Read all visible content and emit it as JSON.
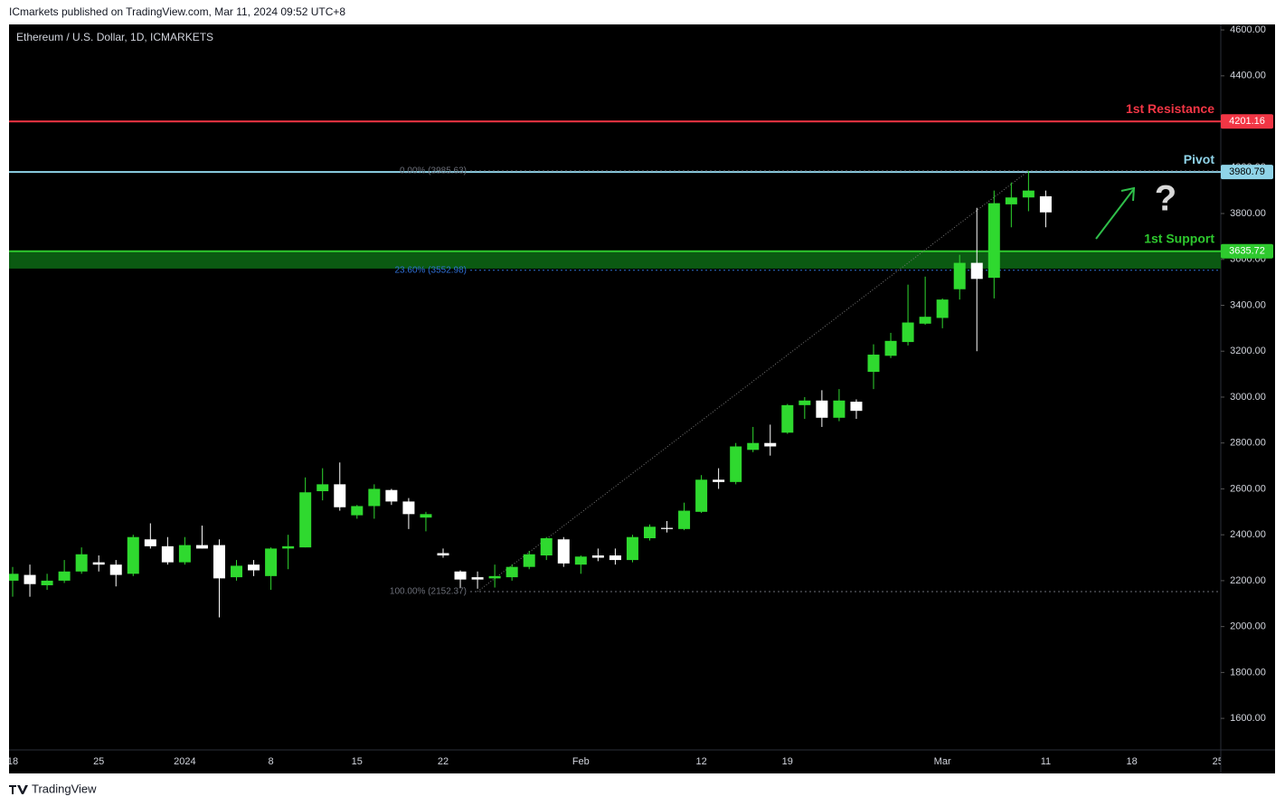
{
  "header": "ICmarkets published on TradingView.com, Mar 11, 2024 09:52 UTC+8",
  "footer": "TradingView",
  "chart_data": {
    "type": "candlestick",
    "title": "Ethereum / U.S. Dollar, 1D, ICMARKETS",
    "categories": [
      "18",
      null,
      null,
      null,
      null,
      "25",
      null,
      null,
      null,
      null,
      "2024",
      null,
      null,
      null,
      null,
      "8",
      null,
      null,
      null,
      null,
      "15",
      null,
      null,
      null,
      null,
      "22",
      null,
      null,
      null,
      null,
      null,
      null,
      null,
      "Feb",
      null,
      null,
      null,
      null,
      null,
      null,
      "12",
      null,
      null,
      null,
      null,
      "19",
      null,
      null,
      null,
      null,
      null,
      null,
      null,
      null,
      "Mar",
      null,
      null,
      null,
      null,
      null,
      "11",
      null,
      null,
      null,
      null,
      "18",
      null,
      null,
      null,
      null,
      "25"
    ],
    "open": [
      2200,
      2225,
      2180,
      2200,
      2240,
      2280,
      2270,
      2230,
      2380,
      2350,
      2280,
      2355,
      2355,
      2215,
      2270,
      2220,
      2340,
      2345,
      2590,
      2620,
      2485,
      2525,
      2595,
      2545,
      2475,
      2320,
      2240,
      2215,
      2210,
      2215,
      2260,
      2310,
      2380,
      2270,
      2310,
      2310,
      2290,
      2385,
      2430,
      2425,
      2500,
      2640,
      2630,
      2770,
      2800,
      2845,
      2965,
      2985,
      2910,
      2980,
      3110,
      3180,
      3240,
      3320,
      3345,
      3470,
      3585,
      3520,
      3840,
      3870,
      3875,
      null,
      null,
      null,
      null,
      null,
      null,
      null,
      null,
      null,
      null
    ],
    "high": [
      2260,
      2270,
      2230,
      2290,
      2345,
      2310,
      2290,
      2400,
      2450,
      2390,
      2390,
      2440,
      2380,
      2290,
      2290,
      2345,
      2400,
      2650,
      2690,
      2715,
      2530,
      2620,
      2600,
      2560,
      2500,
      2340,
      2245,
      2240,
      2270,
      2270,
      2330,
      2390,
      2390,
      2310,
      2340,
      2340,
      2400,
      2445,
      2460,
      2540,
      2660,
      2690,
      2800,
      2870,
      2880,
      2970,
      3000,
      3030,
      3035,
      2990,
      3230,
      3280,
      3490,
      3525,
      3430,
      3620,
      3825,
      3900,
      3935,
      3985.63,
      3900,
      null,
      null,
      null,
      null,
      null,
      null,
      null,
      null,
      null,
      null
    ],
    "low": [
      2130,
      2130,
      2160,
      2190,
      2230,
      2240,
      2175,
      2220,
      2340,
      2270,
      2270,
      2340,
      2040,
      2200,
      2220,
      2160,
      2250,
      2345,
      2550,
      2505,
      2470,
      2470,
      2530,
      2425,
      2415,
      2300,
      2170,
      2165,
      2170,
      2200,
      2250,
      2290,
      2260,
      2230,
      2285,
      2270,
      2280,
      2375,
      2410,
      2420,
      2495,
      2600,
      2620,
      2760,
      2745,
      2840,
      2905,
      2870,
      2895,
      2905,
      3035,
      3170,
      3225,
      3315,
      3300,
      3425,
      3200,
      3430,
      3740,
      3810,
      3740,
      null,
      null,
      null,
      null,
      null,
      null,
      null,
      null,
      null,
      null
    ],
    "close": [
      2230,
      2185,
      2200,
      2240,
      2315,
      2270,
      2225,
      2390,
      2350,
      2280,
      2355,
      2340,
      2210,
      2265,
      2245,
      2340,
      2350,
      2585,
      2620,
      2520,
      2525,
      2600,
      2545,
      2490,
      2490,
      2310,
      2205,
      2205,
      2220,
      2260,
      2315,
      2385,
      2275,
      2305,
      2300,
      2290,
      2390,
      2435,
      2425,
      2505,
      2640,
      2630,
      2785,
      2800,
      2785,
      2965,
      2985,
      2910,
      2985,
      2940,
      3185,
      3245,
      3325,
      3350,
      3425,
      3585,
      3515,
      3845,
      3870,
      3900,
      3805,
      null,
      null,
      null,
      null,
      null,
      null,
      null,
      null,
      null,
      null
    ],
    "up_color": "#2fd92f",
    "down_color": "#ffffff",
    "ylim": [
      1360,
      4624
    ],
    "yticks": [
      {
        "value": 1600,
        "label": "1600.00"
      },
      {
        "value": 1800,
        "label": "1800.00"
      },
      {
        "value": 2000,
        "label": "2000.00"
      },
      {
        "value": 2200,
        "label": "2200.00"
      },
      {
        "value": 2400,
        "label": "2400.00"
      },
      {
        "value": 2600,
        "label": "2600.00"
      },
      {
        "value": 2800,
        "label": "2800.00"
      },
      {
        "value": 3000,
        "label": "3000.00"
      },
      {
        "value": 3200,
        "label": "3200.00"
      },
      {
        "value": 3400,
        "label": "3400.00"
      },
      {
        "value": 3600,
        "label": "3600.00"
      },
      {
        "value": 3800,
        "label": "3800.00"
      },
      {
        "value": 4000,
        "label": "4000.00"
      },
      {
        "value": 4200,
        "label": "4200.00"
      },
      {
        "value": 4400,
        "label": "4400.00"
      },
      {
        "value": 4600,
        "label": "4600.00"
      }
    ],
    "grid": false,
    "levels": [
      {
        "name": "1st Resistance",
        "value": 4201.16,
        "color": "#f23645",
        "label_text_color": "#ffffff"
      },
      {
        "name": "Pivot",
        "value": 3980.79,
        "color": "#8fd3e8",
        "label_text_color": "#000000"
      },
      {
        "name": "1st Support",
        "value": 3635.72,
        "color": "#2ec92e",
        "label_text_color": "#ffffff",
        "band_to": 3560,
        "band_color": "#0b5a12"
      }
    ],
    "fib": [
      {
        "label": "0.00% (3985.63)",
        "value": 3985.63,
        "color": "#6b6e78"
      },
      {
        "label": "23.60% (3552.98)",
        "value": 3552.98,
        "color": "#2f6fd6"
      },
      {
        "label": "100.00% (2152.37)",
        "value": 2152.37,
        "color": "#6b6e78"
      }
    ],
    "annotation": "?"
  }
}
